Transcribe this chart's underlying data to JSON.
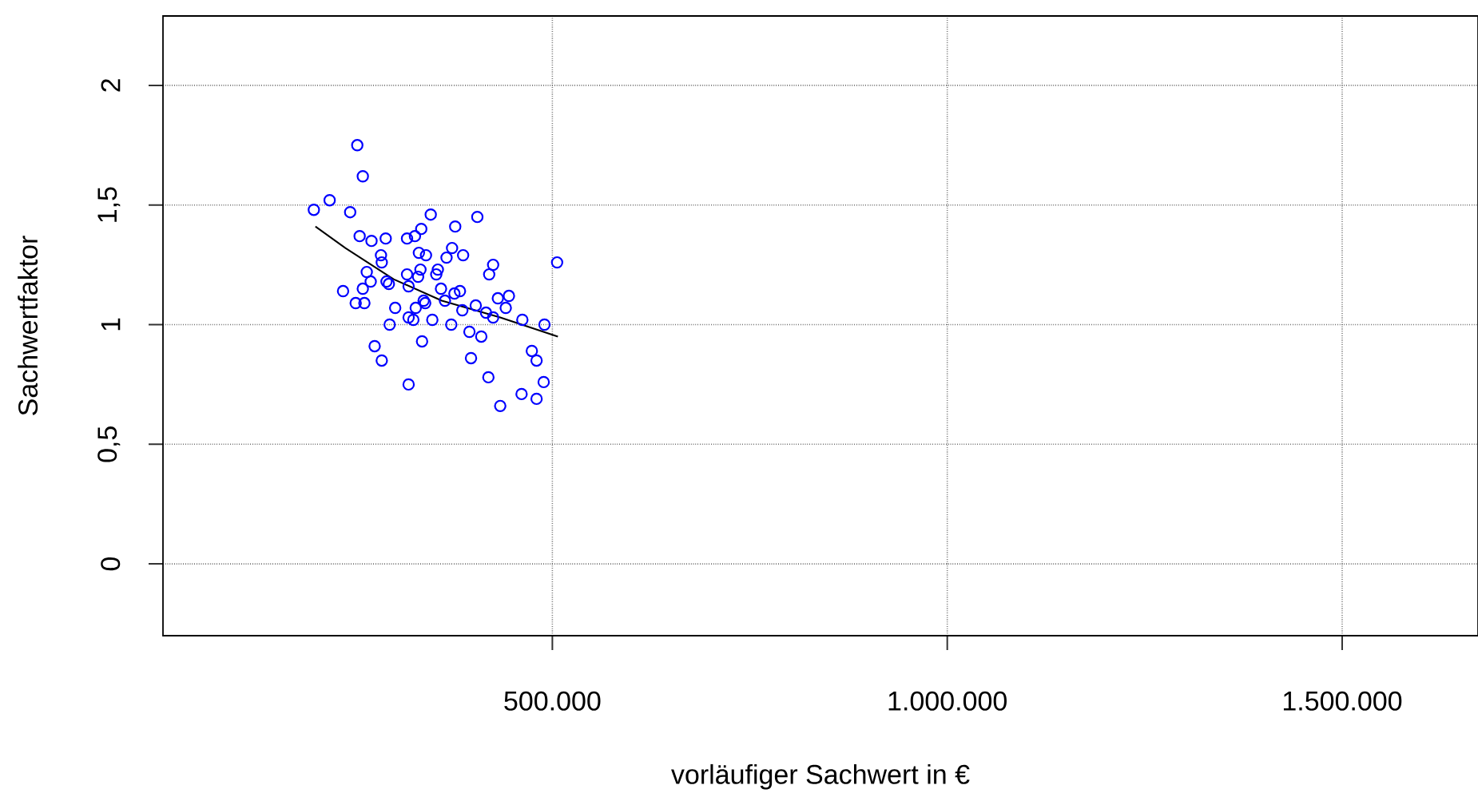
{
  "chart_data": {
    "type": "scatter",
    "xlabel": "vorläufiger Sachwert in €",
    "ylabel": "Sachwertfaktor",
    "xlim": [
      7000,
      1672000
    ],
    "ylim": [
      -0.3,
      2.29
    ],
    "xticks": [
      {
        "value": 500000,
        "label": "500.000"
      },
      {
        "value": 1000000,
        "label": "1.000.000"
      },
      {
        "value": 1500000,
        "label": "1.500.000"
      }
    ],
    "yticks": [
      0,
      {
        "value": 0.5,
        "label": "0,5"
      },
      1,
      {
        "value": 1.5,
        "label": "1,5"
      },
      2
    ],
    "grid": true,
    "marker": "circle",
    "series": [
      {
        "color": "#0000ff",
        "x": [
          198000,
          218000,
          244000,
          253000,
          260000,
          235000,
          251000,
          256000,
          260000,
          262000,
          265000,
          271000,
          270000,
          275000,
          283000,
          284000,
          284000,
          289000,
          290000,
          293000,
          294000,
          301000,
          316000,
          316000,
          318000,
          318000,
          318000,
          324000,
          326000,
          327000,
          330000,
          331000,
          333000,
          334000,
          335000,
          337000,
          339000,
          340000,
          346000,
          348000,
          353000,
          355000,
          359000,
          364000,
          366000,
          372000,
          373000,
          376000,
          377000,
          383000,
          386000,
          387000,
          395000,
          397000,
          403000,
          405000,
          410000,
          416000,
          419000,
          420000,
          425000,
          425000,
          431000,
          434000,
          441000,
          445000,
          461000,
          462000,
          474000,
          480000,
          480000,
          489000,
          490000,
          506000
        ],
        "values": [
          1.48,
          1.52,
          1.47,
          1.75,
          1.62,
          1.14,
          1.09,
          1.37,
          1.15,
          1.09,
          1.22,
          1.35,
          1.18,
          0.91,
          1.29,
          1.26,
          0.85,
          1.36,
          1.18,
          1.17,
          1.0,
          1.07,
          1.36,
          1.21,
          1.16,
          1.03,
          0.75,
          1.02,
          1.37,
          1.07,
          1.2,
          1.3,
          1.23,
          1.4,
          0.93,
          1.1,
          1.09,
          1.29,
          1.46,
          1.02,
          1.21,
          1.23,
          1.15,
          1.1,
          1.28,
          1.0,
          1.32,
          1.13,
          1.41,
          1.14,
          1.06,
          1.29,
          0.97,
          0.86,
          1.08,
          1.45,
          0.95,
          1.05,
          0.78,
          1.21,
          1.25,
          1.03,
          1.11,
          0.66,
          1.07,
          1.12,
          0.71,
          1.02,
          0.89,
          0.85,
          0.69,
          0.76,
          1.0,
          1.26
        ]
      },
      {
        "type": "line",
        "color": "#000000",
        "marker": "none",
        "line_style": "solid",
        "x": [
          200000,
          238000,
          299000,
          360000,
          434000,
          507000
        ],
        "values": [
          1.41,
          1.32,
          1.19,
          1.1,
          1.03,
          0.95
        ]
      }
    ]
  }
}
